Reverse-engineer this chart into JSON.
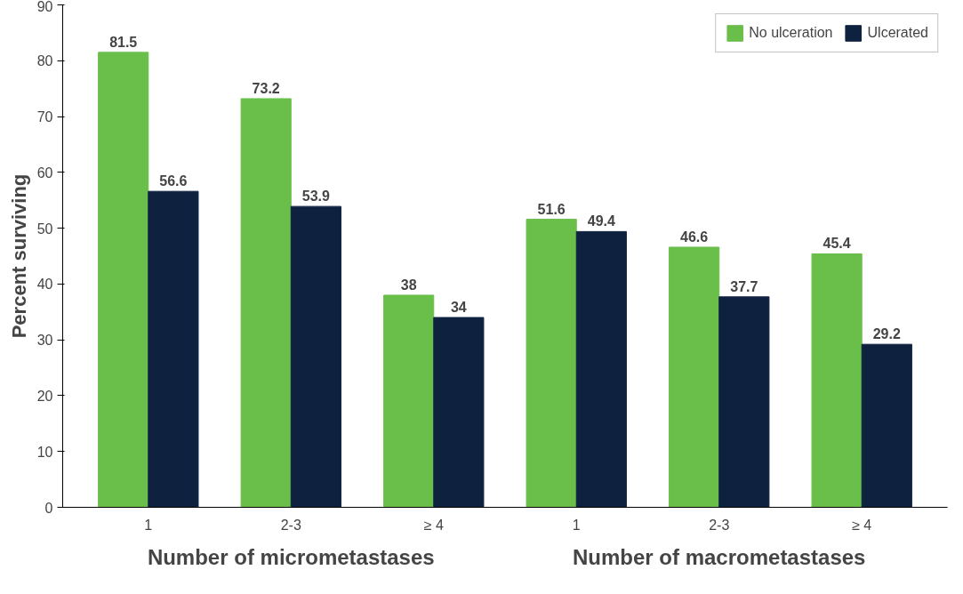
{
  "chart_data": {
    "type": "bar",
    "ylabel": "Percent surviving",
    "categories": [
      "1",
      "2-3",
      "≥ 4",
      "1",
      "2-3",
      "≥ 4"
    ],
    "series": [
      {
        "name": "No ulceration",
        "color": "#6abf4b",
        "values": [
          81.5,
          73.2,
          38,
          51.6,
          46.6,
          45.4
        ]
      },
      {
        "name": "Ulcerated",
        "color": "#0e2240",
        "values": [
          56.6,
          53.9,
          34,
          49.4,
          37.7,
          29.2
        ]
      }
    ],
    "annotations": [
      "Number of micrometastases",
      "Number of macrometastases"
    ],
    "ylim": [
      0,
      90
    ],
    "yticks": [
      0,
      10,
      20,
      30,
      40,
      50,
      60,
      70,
      80,
      90
    ],
    "data_labels": true,
    "grid": false,
    "legend": "top right"
  }
}
